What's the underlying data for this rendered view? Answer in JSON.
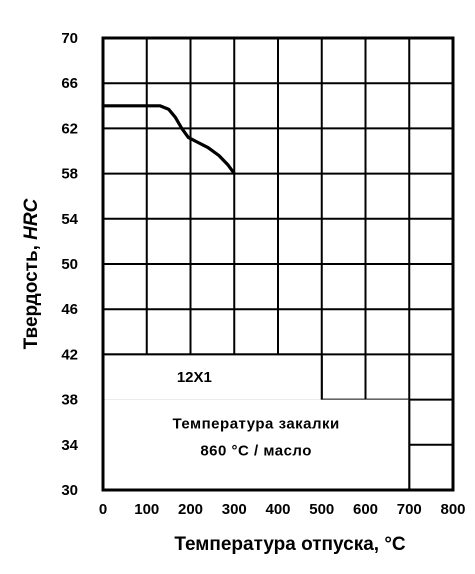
{
  "chart_data": {
    "type": "line",
    "xlabel": "Температура отпуска, °С",
    "ylabel_prefix": "Твердость, ",
    "ylabel_unit": "HRC",
    "xlim": [
      0,
      800
    ],
    "ylim": [
      30,
      70
    ],
    "x_ticks": [
      0,
      100,
      200,
      300,
      400,
      500,
      600,
      700,
      800
    ],
    "y_ticks": [
      30,
      34,
      38,
      42,
      46,
      50,
      54,
      58,
      62,
      66,
      70
    ],
    "grid": true,
    "series": [
      {
        "name": "12Х1",
        "x": [
          0,
          130,
          150,
          165,
          180,
          195,
          215,
          240,
          265,
          285,
          300
        ],
        "y": [
          64.0,
          64.0,
          63.7,
          63.0,
          62.0,
          61.2,
          60.8,
          60.3,
          59.6,
          58.8,
          58.0
        ]
      }
    ],
    "annotations": {
      "steel_grade": "12Х1",
      "quench_line1": "Температура закалки",
      "quench_line2": "860 °С / масло"
    }
  }
}
